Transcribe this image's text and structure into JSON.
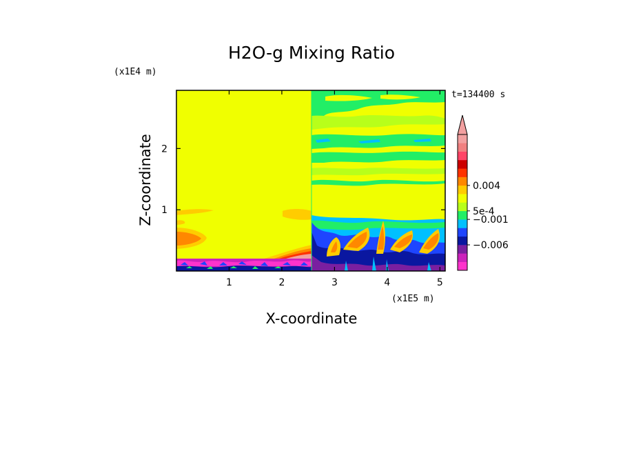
{
  "chart_data": {
    "type": "heatmap",
    "title": "H2O-g Mixing Ratio",
    "xlabel": "X-coordinate",
    "ylabel": "Z-coordinate",
    "x_unit": "(x1E5 m)",
    "y_unit": "(x1E4 m)",
    "time_label": "t=134400 s",
    "xlim": [
      0,
      5.1
    ],
    "ylim": [
      0,
      2.95
    ],
    "x_ticks": [
      "1",
      "2",
      "3",
      "4",
      "5"
    ],
    "x_tick_values": [
      1,
      2,
      3,
      4,
      5
    ],
    "y_ticks": [
      "1",
      "2"
    ],
    "y_tick_values": [
      1,
      2
    ],
    "colorbar": {
      "colors": [
        "#ff33cc",
        "#cc22bb",
        "#7a1fa0",
        "#0a17a0",
        "#1e45ff",
        "#00c0ff",
        "#22ee66",
        "#b8ff1a",
        "#f0ff00",
        "#ffcc00",
        "#ff8800",
        "#ff3300",
        "#cc0000",
        "#ff4466",
        "#f08080",
        "#f2a0a0"
      ],
      "labels": [
        "0.004",
        "5e-4",
        "−0.001",
        "−0.006"
      ],
      "label_levels": [
        0.004,
        0.0005,
        -0.001,
        -0.006
      ],
      "extend_top": true
    }
  }
}
